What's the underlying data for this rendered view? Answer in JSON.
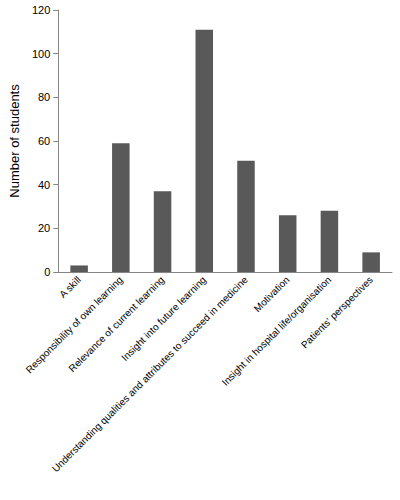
{
  "chart_data": {
    "type": "bar",
    "y_label": "Number of students",
    "categories": [
      "A skill",
      "Responsibility of own learning",
      "Relevance of current learning",
      "Insight into future learning",
      "Understanding qualities and attributes to succeed in medicine",
      "Motivation",
      "Insight in hospital life/organisation",
      "Patients' perspectives"
    ],
    "values": [
      3,
      59,
      37,
      111,
      51,
      26,
      28,
      9
    ],
    "color": "#595959",
    "ylim": [
      0,
      120
    ],
    "yticks": [
      0,
      20,
      40,
      60,
      80,
      100,
      120
    ],
    "grid": false
  }
}
